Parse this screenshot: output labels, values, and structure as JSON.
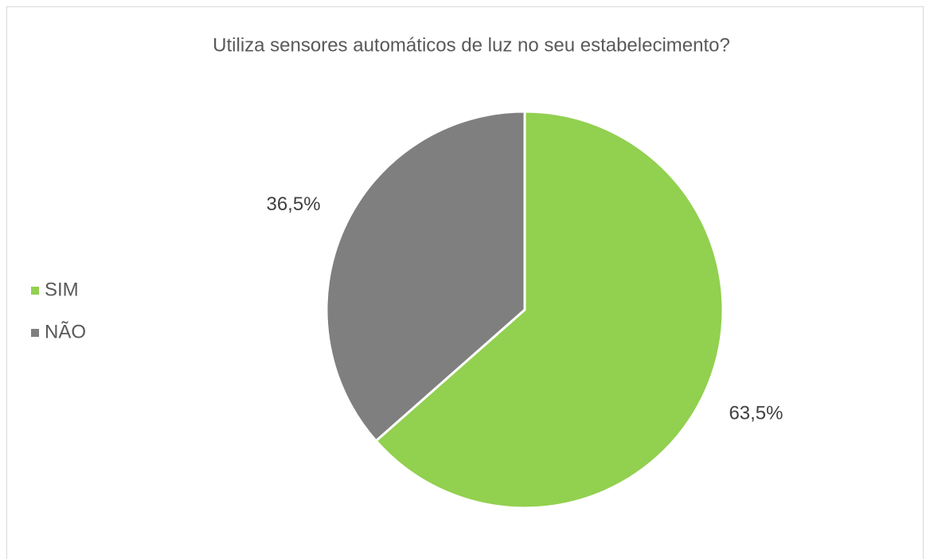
{
  "chart_data": {
    "type": "pie",
    "title": "Utiliza sensores automáticos de luz no seu estabelecimento?",
    "categories": [
      "SIM",
      "NÃO"
    ],
    "values": [
      63.5,
      36.5
    ],
    "value_labels": [
      "63,5%",
      "36,5%"
    ],
    "colors": [
      "#92d050",
      "#7f7f7f"
    ],
    "legend": "left"
  }
}
